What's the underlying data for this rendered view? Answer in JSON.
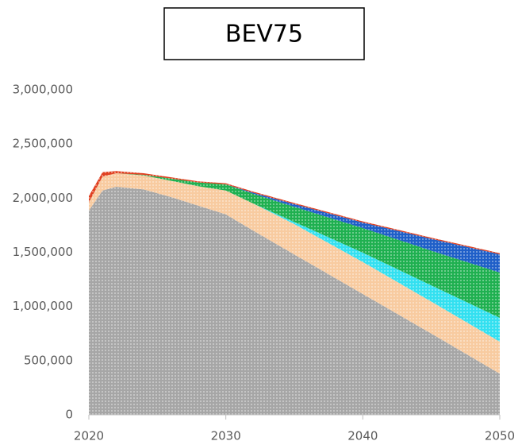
{
  "chart_data": {
    "type": "stacked_area",
    "title": "BEV75",
    "x": [
      2020,
      2021,
      2022,
      2024,
      2026,
      2028,
      2030,
      2032,
      2035,
      2040,
      2045,
      2050
    ],
    "series": [
      {
        "color": "#a6a6a6",
        "values": [
          1885000,
          2070000,
          2105000,
          2080000,
          2010000,
          1930000,
          1850000,
          1700000,
          1480000,
          1115000,
          750000,
          380000
        ]
      },
      {
        "color": "#f8cba0",
        "values": [
          75000,
          130000,
          125000,
          130000,
          150000,
          180000,
          220000,
          250000,
          280000,
          295000,
          295000,
          295000
        ]
      },
      {
        "color": "#33e0f0",
        "values": [
          0,
          0,
          0,
          0,
          0,
          0,
          0,
          0,
          20000,
          86000,
          150000,
          220000
        ]
      },
      {
        "color": "#1fb050",
        "values": [
          0,
          0,
          0,
          5000,
          20000,
          35000,
          57000,
          90000,
          140000,
          228000,
          320000,
          418000
        ]
      },
      {
        "color": "#1f5fc8",
        "values": [
          0,
          0,
          0,
          0,
          0,
          0,
          0,
          10000,
          25000,
          51000,
          110000,
          169000
        ]
      },
      {
        "color": "#e04020",
        "values": [
          60000,
          40000,
          20000,
          15000,
          12000,
          10000,
          10000,
          10000,
          10000,
          10000,
          10000,
          10000
        ]
      }
    ],
    "xlim": [
      2020,
      2050
    ],
    "xticks": [
      2020,
      2030,
      2040,
      2050
    ],
    "ylim": [
      0,
      3000000
    ],
    "yticks": [
      0,
      {
        "value": 500000,
        "label": "500,000"
      },
      {
        "value": 1000000,
        "label": "1,000,000"
      },
      {
        "value": 1500000,
        "label": "1,500,000"
      },
      {
        "value": 2000000,
        "label": "2,000,000"
      },
      {
        "value": 2500000,
        "label": "2,500,000"
      },
      {
        "value": 3000000,
        "label": "3,000,000"
      }
    ]
  }
}
